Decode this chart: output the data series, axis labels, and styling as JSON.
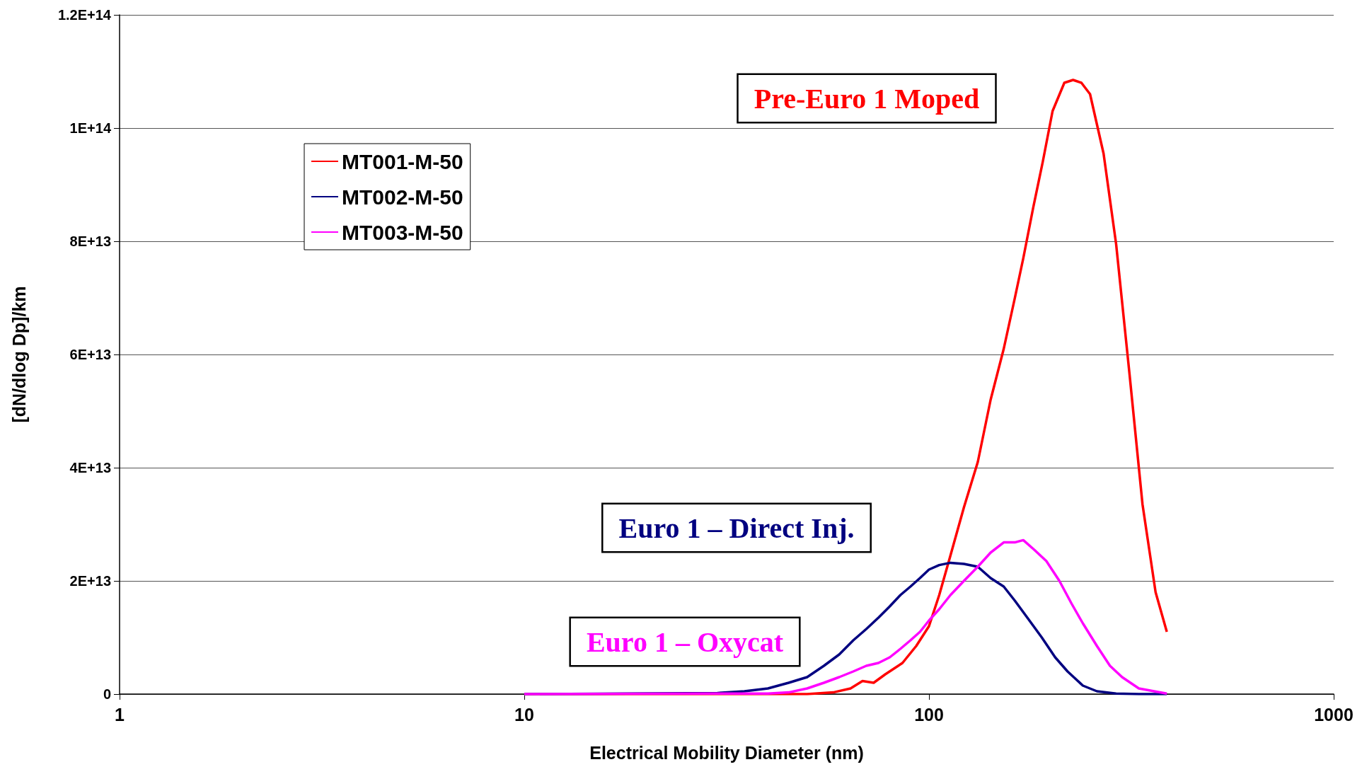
{
  "chart_data": {
    "type": "line",
    "xlabel": "Electrical Mobility Diameter (nm)",
    "ylabel": "[dN/dlog Dp]/km",
    "log": "x",
    "xlim": [
      1,
      1000
    ],
    "xticks": [
      1,
      10,
      100,
      1000
    ],
    "ylim": [
      0,
      120000000000000.0
    ],
    "yticks": [
      {
        "value": 0,
        "label": "0"
      },
      {
        "value": 20000000000000.0,
        "label": "2E+13"
      },
      {
        "value": 40000000000000.0,
        "label": "4E+13"
      },
      {
        "value": 60000000000000.0,
        "label": "6E+13"
      },
      {
        "value": 80000000000000.0,
        "label": "8E+13"
      },
      {
        "value": 100000000000000.0,
        "label": "1E+14"
      },
      {
        "value": 120000000000000.0,
        "label": "1.2E+14"
      }
    ],
    "grid": "y",
    "legend": "top left",
    "marker": "none",
    "line_style": "solid",
    "series": [
      {
        "name": "MT001-M-50",
        "color": "#ff0000",
        "x": [
          10,
          50,
          58,
          64,
          68.5,
          73,
          78,
          86,
          93,
          100,
          106,
          113,
          122,
          132,
          142,
          153,
          163,
          171,
          181,
          191,
          202,
          216,
          227,
          238,
          250,
          270,
          290,
          313,
          337,
          363,
          387
        ],
        "values": [
          0,
          0,
          300000000000.0,
          1000000000000.0,
          2300000000000.0,
          2000000000000.0,
          3500000000000.0,
          5500000000000.0,
          8500000000000.0,
          12000000000000.0,
          17500000000000.0,
          24500000000000.0,
          33000000000000.0,
          41000000000000.0,
          52000000000000.0,
          61000000000000.0,
          70000000000000.0,
          77000000000000.0,
          86000000000000.0,
          94000000000000.0,
          103000000000000.0,
          108000000000000.0,
          108500000000000.0,
          108000000000000.0,
          106000000000000.0,
          95500000000000.0,
          79500000000000.0,
          56500000000000.0,
          33500000000000.0,
          18000000000000.0,
          11000000000000.0
        ]
      },
      {
        "name": "MT002-M-50",
        "color": "#000080",
        "x": [
          10,
          30,
          35,
          40,
          45,
          50,
          55,
          60,
          65,
          70,
          75,
          80,
          85,
          90,
          95,
          100,
          106,
          113,
          122,
          132,
          142,
          153,
          163,
          175,
          190,
          205,
          220,
          240,
          260,
          290,
          330,
          387
        ],
        "values": [
          0,
          200000000000.0,
          500000000000.0,
          1000000000000.0,
          2000000000000.0,
          3000000000000.0,
          5000000000000.0,
          7000000000000.0,
          9500000000000.0,
          11500000000000.0,
          13500000000000.0,
          15500000000000.0,
          17500000000000.0,
          19000000000000.0,
          20500000000000.0,
          22000000000000.0,
          22800000000000.0,
          23200000000000.0,
          23000000000000.0,
          22500000000000.0,
          20500000000000.0,
          19000000000000.0,
          16500000000000.0,
          13500000000000.0,
          10000000000000.0,
          6500000000000.0,
          4000000000000.0,
          1500000000000.0,
          500000000000.0,
          100000000000.0,
          0,
          0
        ]
      },
      {
        "name": "MT003-M-50",
        "color": "#ff00ff",
        "x": [
          10,
          40,
          45,
          50,
          55,
          60,
          65,
          70,
          75,
          80,
          85,
          90,
          95,
          100,
          106,
          113,
          122,
          132,
          142,
          153,
          163,
          171,
          182,
          195,
          210,
          225,
          240,
          260,
          280,
          300,
          330,
          360,
          387
        ],
        "values": [
          0,
          100000000000.0,
          300000000000.0,
          1000000000000.0,
          2000000000000.0,
          3000000000000.0,
          4000000000000.0,
          5000000000000.0,
          5500000000000.0,
          6500000000000.0,
          8000000000000.0,
          9500000000000.0,
          11000000000000.0,
          13000000000000.0,
          15000000000000.0,
          17500000000000.0,
          20000000000000.0,
          22500000000000.0,
          25000000000000.0,
          26800000000000.0,
          26800000000000.0,
          27200000000000.0,
          25500000000000.0,
          23500000000000.0,
          20000000000000.0,
          16000000000000.0,
          12500000000000.0,
          8500000000000.0,
          5000000000000.0,
          3000000000000.0,
          1000000000000.0,
          500000000000.0,
          100000000000.0
        ]
      }
    ],
    "annotations": [
      "Pre-Euro 1 Moped",
      "Euro 1 – Direct Inj.",
      "Euro 1 – Oxycat"
    ]
  }
}
